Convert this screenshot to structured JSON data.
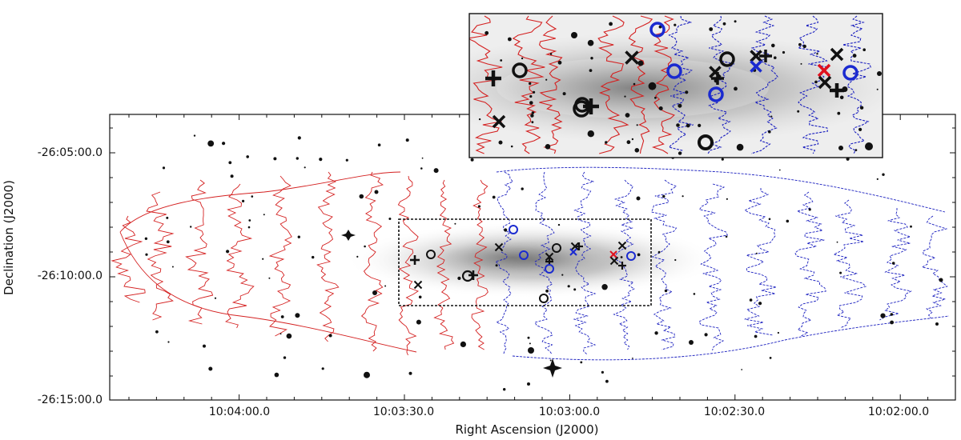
{
  "figure": {
    "xlabel": "Right Ascension (J2000)",
    "ylabel": "Declination (J2000)",
    "x_ticks": [
      "10:04:00.0",
      "10:03:30.0",
      "10:03:00.0",
      "10:02:30.0",
      "10:02:00.0"
    ],
    "y_ticks": [
      "-26:05:00.0",
      "-26:10:00.0",
      "-26:15:00.0"
    ],
    "colors": {
      "red_contours": "#d42020",
      "blue_contours": "#1a1fbf",
      "markers_black": "#111111",
      "markers_blue": "#1a2ad0",
      "marker_red": "#e0101e"
    }
  }
}
